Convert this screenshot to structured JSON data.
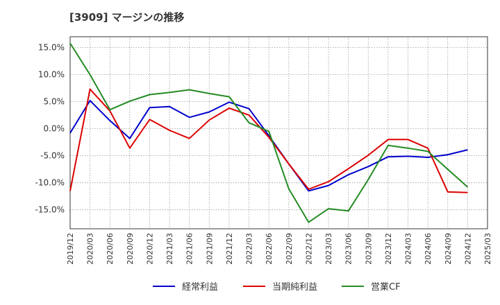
{
  "chart_data": {
    "type": "line",
    "title": "[3909]  マージンの推移",
    "xlabel": "",
    "ylabel": "",
    "ylim": [
      -18.5,
      17.0
    ],
    "grid": true,
    "legend_position": "bottom",
    "x_ticks": [
      "2019/12",
      "2020/03",
      "2020/06",
      "2020/09",
      "2020/12",
      "2021/03",
      "2021/06",
      "2021/09",
      "2021/12",
      "2022/03",
      "2022/06",
      "2022/09",
      "2022/12",
      "2023/03",
      "2023/06",
      "2023/09",
      "2023/12",
      "2024/03",
      "2024/06",
      "2024/09",
      "2024/12",
      "2025/03"
    ],
    "y_ticks": [
      {
        "value": 15,
        "label": "15.0%"
      },
      {
        "value": 10,
        "label": "10.0%"
      },
      {
        "value": 5,
        "label": "5.0%"
      },
      {
        "value": 0,
        "label": "0.0%"
      },
      {
        "value": -5,
        "label": "-5.0%"
      },
      {
        "value": -10,
        "label": "-10.0%"
      },
      {
        "value": -15,
        "label": "-15.0%"
      }
    ],
    "series": [
      {
        "name": "経常利益",
        "color": "#0000cc",
        "points": [
          [
            "2019/12",
            -0.8
          ],
          [
            "2020/03",
            5.2
          ],
          [
            "2020/06",
            1.5
          ],
          [
            "2020/09",
            -1.8
          ],
          [
            "2020/12",
            3.9
          ],
          [
            "2021/03",
            4.1
          ],
          [
            "2021/06",
            2.1
          ],
          [
            "2021/09",
            3.1
          ],
          [
            "2021/12",
            4.9
          ],
          [
            "2022/03",
            3.7
          ],
          [
            "2022/06",
            -1.3
          ],
          [
            "2022/09",
            -6.5
          ],
          [
            "2022/12",
            -11.5
          ],
          [
            "2023/03",
            -10.5
          ],
          [
            "2023/06",
            -8.5
          ],
          [
            "2023/09",
            -7.0
          ],
          [
            "2023/12",
            -5.2
          ],
          [
            "2024/03",
            -5.1
          ],
          [
            "2024/06",
            -5.3
          ],
          [
            "2024/09",
            -4.8
          ],
          [
            "2024/12",
            -3.9
          ]
        ]
      },
      {
        "name": "当期純利益",
        "color": "#dd0000",
        "points": [
          [
            "2019/12",
            -11.5
          ],
          [
            "2020/03",
            7.3
          ],
          [
            "2020/06",
            3.3
          ],
          [
            "2020/09",
            -3.6
          ],
          [
            "2020/12",
            1.7
          ],
          [
            "2021/03",
            -0.3
          ],
          [
            "2021/06",
            -1.8
          ],
          [
            "2021/09",
            1.6
          ],
          [
            "2021/12",
            3.8
          ],
          [
            "2022/03",
            2.5
          ],
          [
            "2022/06",
            -1.6
          ],
          [
            "2022/09",
            -6.5
          ],
          [
            "2022/12",
            -11.2
          ],
          [
            "2023/03",
            -9.8
          ],
          [
            "2023/06",
            -7.4
          ],
          [
            "2023/09",
            -4.9
          ],
          [
            "2023/12",
            -2.0
          ],
          [
            "2024/03",
            -2.0
          ],
          [
            "2024/06",
            -3.6
          ],
          [
            "2024/09",
            -11.7
          ],
          [
            "2024/12",
            -11.8
          ]
        ]
      },
      {
        "name": "営業CF",
        "color": "#228b22",
        "points": [
          [
            "2019/12",
            15.8
          ],
          [
            "2020/03",
            10.0
          ],
          [
            "2020/06",
            3.5
          ],
          [
            "2020/09",
            5.1
          ],
          [
            "2020/12",
            6.3
          ],
          [
            "2021/03",
            6.7
          ],
          [
            "2021/06",
            7.2
          ],
          [
            "2021/09",
            6.5
          ],
          [
            "2021/12",
            5.9
          ],
          [
            "2022/03",
            1.1
          ],
          [
            "2022/06",
            -0.5
          ],
          [
            "2022/09",
            -11.1
          ],
          [
            "2022/12",
            -17.3
          ],
          [
            "2023/03",
            -14.8
          ],
          [
            "2023/06",
            -15.2
          ],
          [
            "2023/09",
            -9.4
          ],
          [
            "2023/12",
            -3.1
          ],
          [
            "2024/03",
            -3.6
          ],
          [
            "2024/06",
            -4.2
          ],
          [
            "2024/09",
            -7.5
          ],
          [
            "2024/12",
            -10.8
          ]
        ]
      }
    ]
  }
}
